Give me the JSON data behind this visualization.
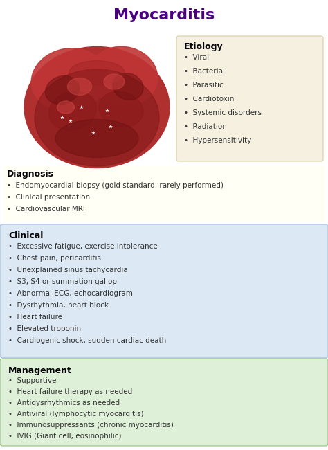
{
  "title": "Myocarditis",
  "title_color": "#4B0082",
  "title_fontsize": 16,
  "bg_color": "#FFFFFF",
  "etiology_box_color": "#F5F0E0",
  "etiology_title": "Etiology",
  "etiology_items": [
    "Viral",
    "Bacterial",
    "Parasitic",
    "Cardiotoxin",
    "Systemic disorders",
    "Radiation",
    "Hypersensitivity"
  ],
  "diagnosis_title": "Diagnosis",
  "diagnosis_bg": "#FFFFF5",
  "diagnosis_items": [
    "Endomyocardial biopsy (gold standard, rarely performed)",
    "Clinical presentation",
    "Cardiovascular MRI"
  ],
  "clinical_title": "Clinical",
  "clinical_bg": "#DCE9F5",
  "clinical_items": [
    "Excessive fatigue, exercise intolerance",
    "Chest pain, pericarditis",
    "Unexplained sinus tachycardia",
    "S3, S4 or summation gallop",
    "Abnormal ECG, echocardiogram",
    "Dysrhythmia, heart block",
    "Heart failure",
    "Elevated troponin",
    "Cardiogenic shock, sudden cardiac death"
  ],
  "management_title": "Management",
  "management_bg": "#DFF0D8",
  "management_items": [
    "Supportive",
    "Heart failure therapy as needed",
    "Antidysrhythmics as needed",
    "Antiviral (lymphocytic myocarditis)",
    "Immunosuppressants (chronic myocarditis)",
    "IVIG (Giant cell, eosinophilic)"
  ],
  "section_title_color": "#000000",
  "item_text_color": "#333333",
  "item_fontsize": 7.5,
  "section_title_fontsize": 9
}
